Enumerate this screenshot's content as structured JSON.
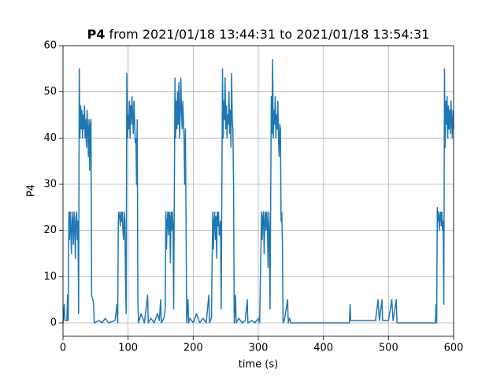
{
  "chart_data": {
    "type": "line",
    "title_bold": "P4",
    "title": "from 2021/01/18 13:44:31 to 2021/01/18 13:54:31",
    "xlabel": "time (s)",
    "ylabel": "P4",
    "x": [
      0,
      2,
      3,
      6,
      7,
      8,
      9,
      10,
      11,
      12,
      13,
      14,
      15,
      16,
      17,
      18,
      19,
      20,
      21,
      22,
      23,
      24,
      25,
      26,
      27,
      28,
      29,
      30,
      31,
      32,
      33,
      34,
      35,
      36,
      37,
      38,
      39,
      40,
      41,
      42,
      43,
      44,
      46,
      47,
      48,
      55,
      60,
      65,
      70,
      80,
      83,
      84,
      85,
      86,
      87,
      88,
      89,
      90,
      91,
      92,
      93,
      94,
      95,
      96,
      97,
      98,
      99,
      100,
      101,
      102,
      103,
      104,
      105,
      106,
      107,
      108,
      109,
      110,
      111,
      112,
      113,
      114,
      115,
      116,
      120,
      125,
      130,
      131,
      135,
      140,
      145,
      148,
      150,
      151,
      155,
      157,
      158,
      159,
      160,
      161,
      162,
      163,
      164,
      165,
      166,
      167,
      168,
      169,
      170,
      172,
      173,
      174,
      175,
      176,
      177,
      178,
      179,
      180,
      181,
      182,
      183,
      184,
      185,
      186,
      187,
      188,
      189,
      190,
      192,
      193,
      195,
      200,
      205,
      210,
      215,
      220,
      224,
      225,
      228,
      230,
      231,
      232,
      233,
      234,
      235,
      236,
      237,
      238,
      239,
      240,
      242,
      243,
      245,
      246,
      247,
      248,
      249,
      250,
      251,
      252,
      253,
      254,
      255,
      256,
      257,
      258,
      259,
      260,
      261,
      262,
      263,
      265,
      266,
      270,
      275,
      280,
      283,
      284,
      290,
      295,
      300,
      302,
      305,
      306,
      307,
      308,
      309,
      310,
      311,
      312,
      313,
      314,
      315,
      316,
      317,
      318,
      320,
      321,
      322,
      323,
      324,
      325,
      326,
      327,
      328,
      329,
      330,
      331,
      332,
      333,
      334,
      335,
      336,
      337,
      338,
      340,
      345,
      346,
      348,
      350,
      440,
      441,
      442,
      460,
      480,
      484,
      486,
      490,
      491,
      500,
      505,
      507,
      512,
      513,
      530,
      550,
      572,
      573,
      574,
      575,
      576,
      577,
      578,
      579,
      580,
      581,
      582,
      583,
      584,
      585,
      586,
      587,
      588,
      589,
      590,
      591,
      592,
      593,
      594,
      595,
      596,
      597,
      598,
      599,
      600
    ],
    "values": [
      0,
      4,
      0.5,
      0.5,
      6,
      0.5,
      24,
      18,
      24,
      20,
      15,
      24,
      22,
      17,
      24,
      21,
      14,
      23,
      24,
      18,
      22,
      2,
      55,
      40,
      47,
      42,
      46,
      40,
      45,
      42,
      47,
      40,
      44,
      38,
      46,
      42,
      36,
      44,
      33,
      43,
      44,
      6,
      5,
      4,
      0,
      0.5,
      0,
      1,
      0,
      0.5,
      4,
      0,
      22,
      24,
      23,
      21,
      24,
      22,
      24,
      20,
      18,
      24,
      22,
      10,
      2,
      54,
      40,
      45,
      42,
      48,
      40,
      47,
      43,
      49,
      45,
      41,
      48,
      44,
      39,
      40,
      30,
      44,
      5,
      0,
      2,
      0,
      6,
      0,
      1,
      0,
      2,
      0.5,
      5,
      0,
      1,
      3,
      24,
      16,
      22,
      24,
      19,
      24,
      23,
      13,
      24,
      20,
      24,
      21,
      3,
      53,
      40,
      48,
      42,
      50,
      43,
      52,
      40,
      45,
      53,
      46,
      42,
      48,
      44,
      40,
      30,
      42,
      22,
      0,
      5,
      0,
      1,
      0,
      2,
      0,
      1,
      0,
      6,
      0,
      1,
      24,
      16,
      22,
      24,
      18,
      23,
      14,
      24,
      21,
      24,
      19,
      22,
      3,
      55,
      40,
      48,
      44,
      53,
      42,
      47,
      40,
      45,
      43,
      50,
      41,
      46,
      38,
      54,
      44,
      42,
      30,
      0,
      6,
      0,
      1,
      0,
      0.5,
      5,
      0,
      0.5,
      0,
      1,
      0,
      24,
      18,
      23,
      24,
      15,
      22,
      24,
      20,
      24,
      21,
      12,
      24,
      20,
      3,
      49,
      41,
      57,
      40,
      46,
      43,
      49,
      40,
      45,
      42,
      48,
      40,
      36,
      43,
      42,
      22,
      24,
      18,
      0,
      0.5,
      5,
      0,
      1,
      0,
      0,
      4,
      0.5,
      0.5,
      0.5,
      5,
      0.5,
      5,
      0.5,
      0.5,
      5,
      0.5,
      5,
      0,
      0,
      0,
      0,
      4,
      0,
      25,
      22,
      24,
      20,
      23,
      24,
      21,
      24,
      20,
      22,
      4,
      55,
      38,
      48,
      43,
      49,
      40,
      47,
      42,
      46,
      41,
      48,
      44,
      40,
      46,
      42
    ],
    "color": "#1f77b4",
    "xlim": [
      0,
      600
    ],
    "xticks": [
      0,
      100,
      200,
      300,
      400,
      500,
      600
    ],
    "ylim": [
      -2.9,
      60
    ],
    "yticks": [
      0,
      10,
      20,
      30,
      40,
      50,
      60
    ],
    "grid": true
  }
}
